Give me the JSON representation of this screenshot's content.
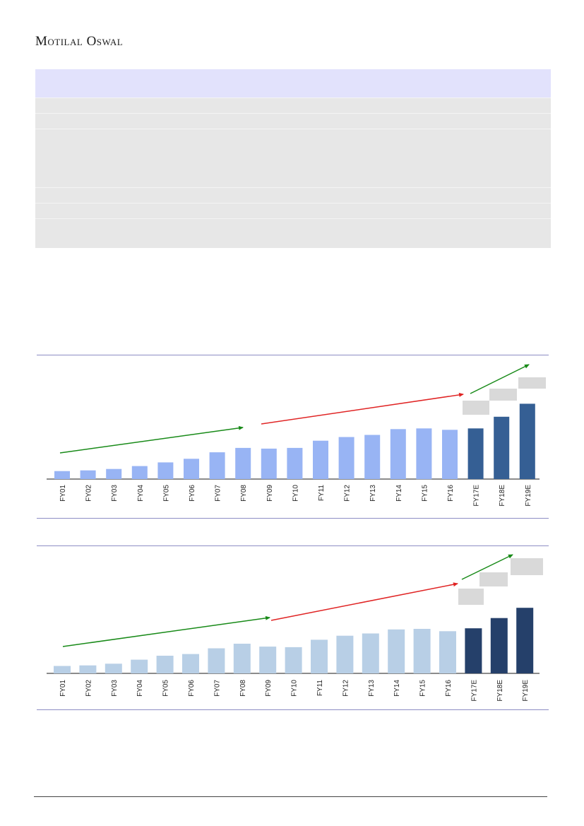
{
  "header": {
    "brand": "Motilal Oswal"
  },
  "chart_data": [
    {
      "type": "bar",
      "categories": [
        "FY01",
        "FY02",
        "FY03",
        "FY04",
        "FY05",
        "FY06",
        "FY07",
        "FY08",
        "FY09",
        "FY10",
        "FY11",
        "FY12",
        "FY13",
        "FY14",
        "FY15",
        "FY16",
        "FY17E",
        "FY18E",
        "FY19E"
      ],
      "values": [
        11,
        12,
        14,
        18,
        23,
        28,
        37,
        43,
        42,
        43,
        53,
        58,
        61,
        69,
        70,
        68,
        70,
        86,
        104
      ],
      "ylim": [
        0,
        120
      ],
      "colors": {
        "actual": "#98b4f4",
        "estimate": "#355f94"
      }
    },
    {
      "type": "bar",
      "categories": [
        "FY01",
        "FY02",
        "FY03",
        "FY04",
        "FY05",
        "FY06",
        "FY07",
        "FY08",
        "FY09",
        "FY10",
        "FY11",
        "FY12",
        "FY13",
        "FY14",
        "FY15",
        "FY16",
        "FY17E",
        "FY18E",
        "FY19E"
      ],
      "values": [
        13,
        14,
        17,
        24,
        31,
        34,
        44,
        52,
        47,
        46,
        59,
        66,
        70,
        77,
        78,
        74,
        79,
        97,
        115
      ],
      "ylim": [
        0,
        140
      ],
      "colors": {
        "actual": "#b8cfe6",
        "estimate": "#25406a"
      }
    }
  ]
}
